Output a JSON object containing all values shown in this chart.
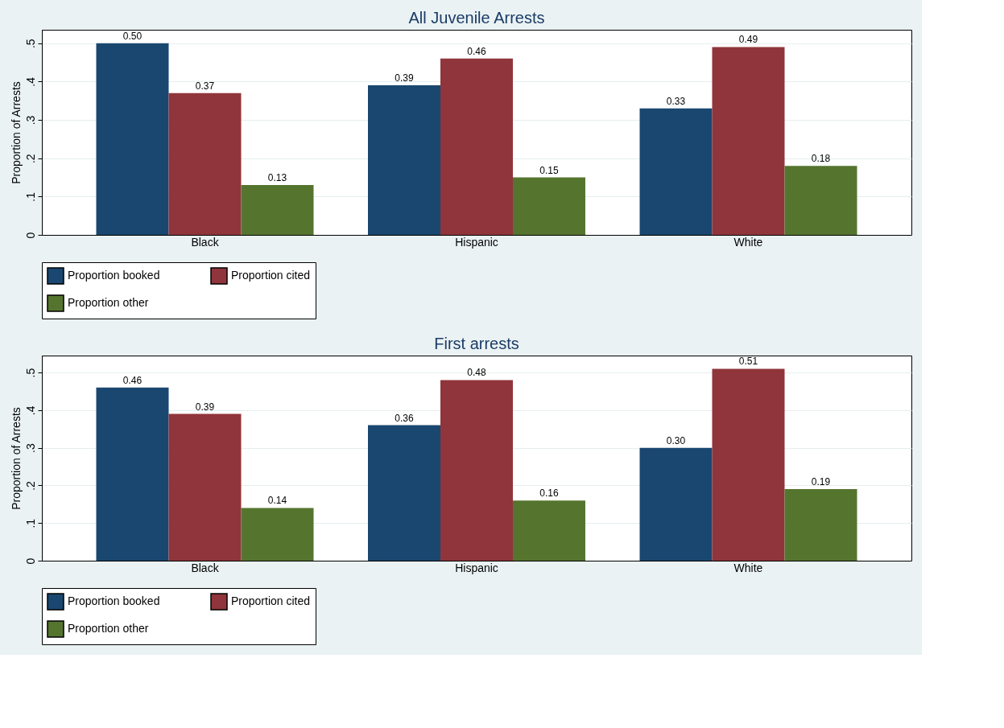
{
  "chart_data": [
    {
      "type": "bar",
      "title": "All Juvenile Arrests",
      "ylabel": "Proportion of Arrests",
      "categories": [
        "Black",
        "Hispanic",
        "White"
      ],
      "series": [
        {
          "name": "Proportion booked",
          "color": "#1a476f",
          "values": [
            0.5,
            0.39,
            0.33
          ],
          "value_labels": [
            "0.50",
            "0.39",
            "0.33"
          ]
        },
        {
          "name": "Proportion cited",
          "color": "#90353b",
          "values": [
            0.37,
            0.46,
            0.49
          ],
          "value_labels": [
            "0.37",
            "0.46",
            "0.49"
          ]
        },
        {
          "name": "Proportion other",
          "color": "#55752f",
          "values": [
            0.13,
            0.15,
            0.18
          ],
          "value_labels": [
            "0.13",
            "0.15",
            "0.18"
          ]
        }
      ],
      "ylim": [
        0,
        0.535
      ],
      "yticks": [
        0,
        {
          "value": 0.1,
          "label": ".1"
        },
        {
          "value": 0.2,
          "label": ".2"
        },
        {
          "value": 0.3,
          "label": ".3"
        },
        {
          "value": 0.4,
          "label": ".4"
        },
        {
          "value": 0.5,
          "label": ".5"
        }
      ],
      "grid": "y",
      "legend": "bottom"
    },
    {
      "type": "bar",
      "title": "First arrests",
      "ylabel": "Proportion of Arrests",
      "categories": [
        "Black",
        "Hispanic",
        "White"
      ],
      "series": [
        {
          "name": "Proportion booked",
          "color": "#1a476f",
          "values": [
            0.46,
            0.36,
            0.3
          ],
          "value_labels": [
            "0.46",
            "0.36",
            "0.30"
          ]
        },
        {
          "name": "Proportion cited",
          "color": "#90353b",
          "values": [
            0.39,
            0.48,
            0.51
          ],
          "value_labels": [
            "0.39",
            "0.48",
            "0.51"
          ]
        },
        {
          "name": "Proportion other",
          "color": "#55752f",
          "values": [
            0.14,
            0.16,
            0.19
          ],
          "value_labels": [
            "0.14",
            "0.16",
            "0.19"
          ]
        }
      ],
      "ylim": [
        0,
        0.545
      ],
      "yticks": [
        0,
        {
          "value": 0.1,
          "label": ".1"
        },
        {
          "value": 0.2,
          "label": ".2"
        },
        {
          "value": 0.3,
          "label": ".3"
        },
        {
          "value": 0.4,
          "label": ".4"
        },
        {
          "value": 0.5,
          "label": ".5"
        }
      ],
      "grid": "y",
      "legend": "bottom"
    }
  ]
}
